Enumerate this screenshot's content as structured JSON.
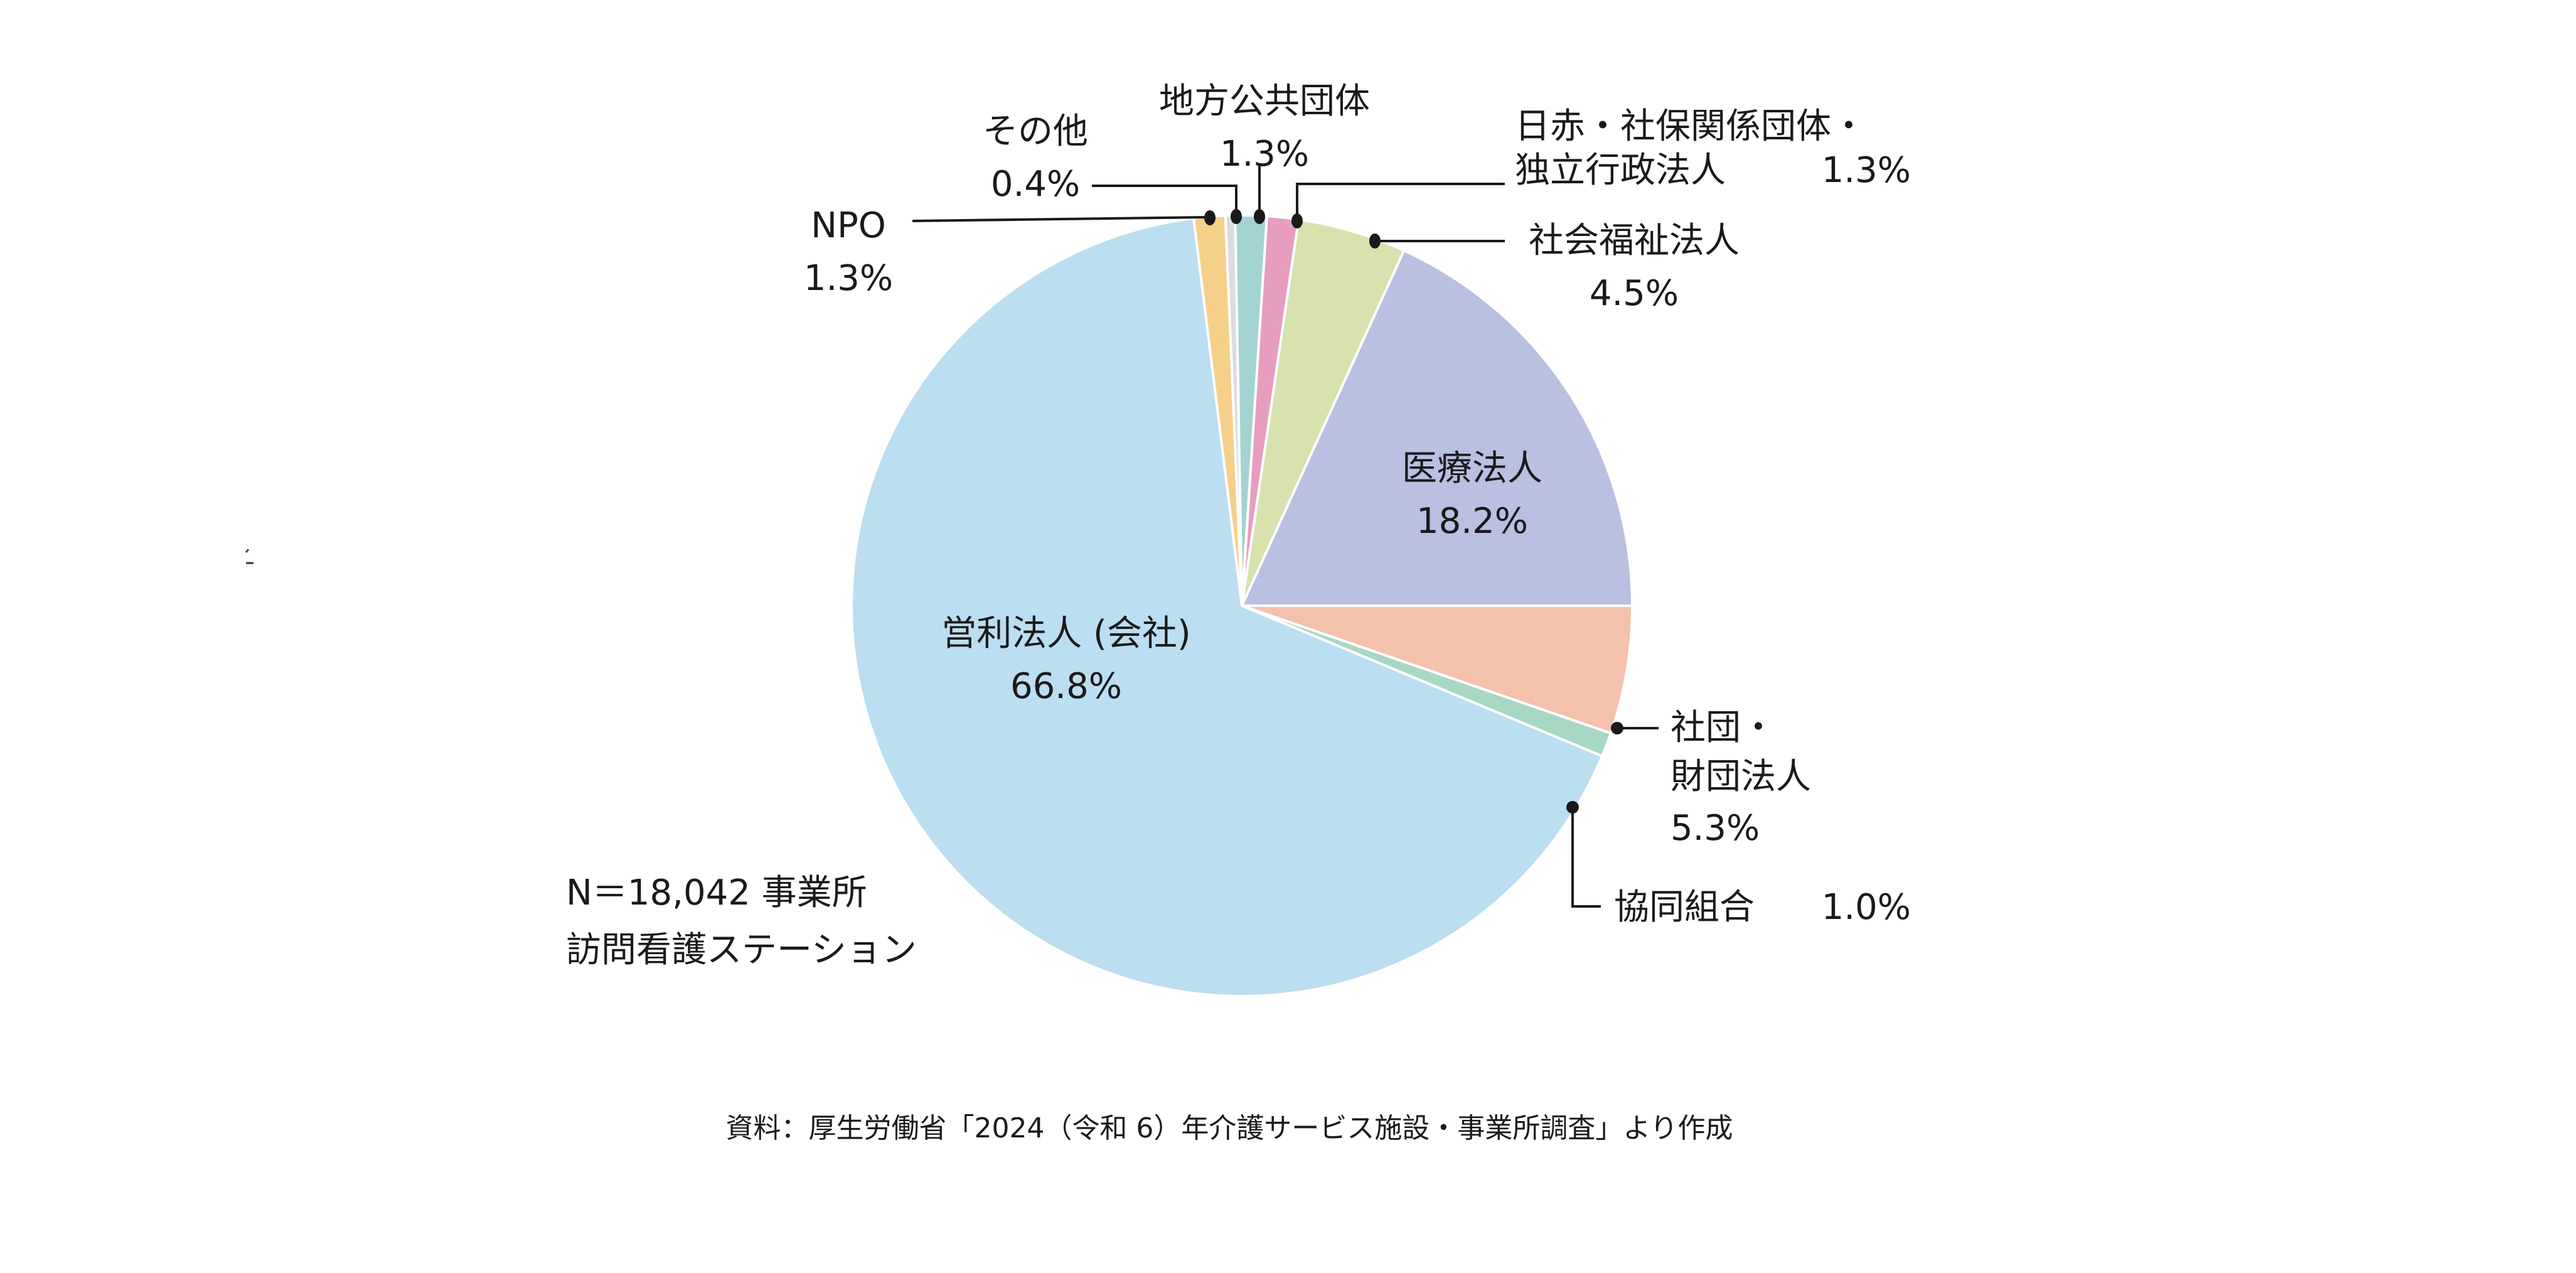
{
  "chart_data": {
    "type": "pie",
    "title": "",
    "note_line1": "N＝18,042 事業所",
    "note_line2": "訪問看護ステーション",
    "source": "資料：厚生労働省「2024（令和 6）年介護サービス施設・事業所調査」より作成",
    "slices": [
      {
        "label": "地方公共団体",
        "value": 1.3,
        "value_text": "1.3%",
        "color": "#a3d3d3"
      },
      {
        "label": "日赤・社保関係団体・独立行政法人",
        "label_line1": "日赤・社保関係団体・",
        "label_line2": "独立行政法人",
        "value": 1.3,
        "value_text": "1.3%",
        "color": "#e79dc0"
      },
      {
        "label": "社会福祉法人",
        "value": 4.5,
        "value_text": "4.5%",
        "color": "#d8e2ae"
      },
      {
        "label": "医療法人",
        "value": 18.2,
        "value_text": "18.2%",
        "color": "#b9c0e0"
      },
      {
        "label": "社団・財団法人",
        "label_line1": "社団・",
        "label_line2": "財団法人",
        "value": 5.3,
        "value_text": "5.3%",
        "color": "#f4c1ad"
      },
      {
        "label": "協同組合",
        "value": 1.0,
        "value_text": "1.0%",
        "color": "#a8d7c4"
      },
      {
        "label": "営利法人 (会社)",
        "value": 66.8,
        "value_text": "66.8%",
        "color": "#bbdef0"
      },
      {
        "label": "NPO",
        "value": 1.3,
        "value_text": "1.3%",
        "color": "#f4d088"
      },
      {
        "label": "その他",
        "value": 0.4,
        "value_text": "0.4%",
        "color": "#dcdcdc"
      }
    ]
  }
}
